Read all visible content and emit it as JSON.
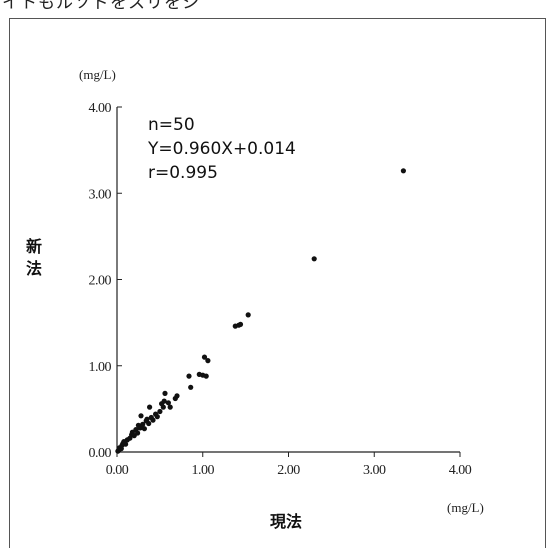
{
  "header_fragment": "イトもルソドをスリをシ",
  "chart_data": {
    "type": "scatter",
    "xlabel": "現法",
    "ylabel": "新法",
    "x_unit": "(mg/L)",
    "y_unit": "(mg/L)",
    "xlim": [
      0,
      4
    ],
    "ylim": [
      0,
      4
    ],
    "x_ticks": [
      "0.00",
      "1.00",
      "2.00",
      "3.00",
      "4.00"
    ],
    "y_ticks": [
      "0.00",
      "1.00",
      "2.00",
      "3.00",
      "4.00"
    ],
    "annotations": [
      "n=50",
      "Y=0.960X+0.014",
      "r=0.995"
    ],
    "grid": false,
    "point_color": "#111111",
    "points": [
      [
        0.01,
        0.01
      ],
      [
        0.02,
        0.02
      ],
      [
        0.03,
        0.05
      ],
      [
        0.05,
        0.04
      ],
      [
        0.06,
        0.08
      ],
      [
        0.07,
        0.1
      ],
      [
        0.1,
        0.09
      ],
      [
        0.12,
        0.14
      ],
      [
        0.15,
        0.16
      ],
      [
        0.17,
        0.2
      ],
      [
        0.18,
        0.23
      ],
      [
        0.2,
        0.19
      ],
      [
        0.22,
        0.26
      ],
      [
        0.24,
        0.22
      ],
      [
        0.25,
        0.31
      ],
      [
        0.27,
        0.28
      ],
      [
        0.3,
        0.32
      ],
      [
        0.32,
        0.27
      ],
      [
        0.34,
        0.36
      ],
      [
        0.35,
        0.38
      ],
      [
        0.37,
        0.33
      ],
      [
        0.38,
        0.52
      ],
      [
        0.4,
        0.4
      ],
      [
        0.42,
        0.37
      ],
      [
        0.45,
        0.44
      ],
      [
        0.47,
        0.41
      ],
      [
        0.5,
        0.47
      ],
      [
        0.52,
        0.56
      ],
      [
        0.54,
        0.52
      ],
      [
        0.55,
        0.59
      ],
      [
        0.56,
        0.68
      ],
      [
        0.6,
        0.57
      ],
      [
        0.62,
        0.52
      ],
      [
        0.68,
        0.62
      ],
      [
        0.7,
        0.65
      ],
      [
        0.84,
        0.88
      ],
      [
        0.86,
        0.75
      ],
      [
        0.96,
        0.9
      ],
      [
        1.0,
        0.89
      ],
      [
        1.02,
        1.1
      ],
      [
        1.04,
        0.88
      ],
      [
        1.06,
        1.06
      ],
      [
        1.38,
        1.46
      ],
      [
        1.42,
        1.47
      ],
      [
        1.44,
        1.48
      ],
      [
        1.53,
        1.59
      ],
      [
        2.3,
        2.24
      ],
      [
        3.34,
        3.26
      ],
      [
        0.08,
        0.12
      ],
      [
        0.28,
        0.42
      ]
    ]
  }
}
